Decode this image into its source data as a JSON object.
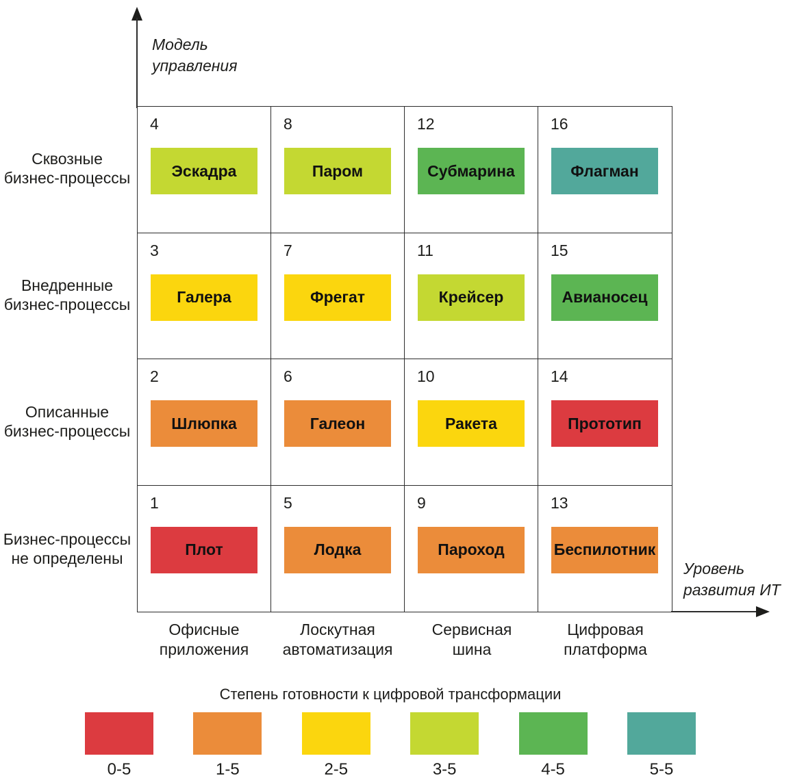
{
  "y_axis": {
    "label": "Модель\nуправления"
  },
  "x_axis": {
    "label": "Уровень\nразвития ИТ"
  },
  "matrix": {
    "row_labels": [
      "Сквозные\nбизнес-процессы",
      "Внедренные\nбизнес-процессы",
      "Описанные\nбизнес-процессы",
      "Бизнес-процессы\nне определены"
    ],
    "column_labels": [
      "Офисные\nприложения",
      "Лоскутная\nавтоматизация",
      "Сервисная\nшина",
      "Цифровая\nплатформа"
    ],
    "cells": [
      {
        "number": "4",
        "name": "Эскадра",
        "color": "#c4d832"
      },
      {
        "number": "8",
        "name": "Паром",
        "color": "#c4d832"
      },
      {
        "number": "12",
        "name": "Субмарина",
        "color": "#5cb553"
      },
      {
        "number": "16",
        "name": "Флагман",
        "color": "#52a89b"
      },
      {
        "number": "3",
        "name": "Галера",
        "color": "#fbd60e"
      },
      {
        "number": "7",
        "name": "Фрегат",
        "color": "#fbd60e"
      },
      {
        "number": "11",
        "name": "Крейсер",
        "color": "#c4d832"
      },
      {
        "number": "15",
        "name": "Авианосец",
        "color": "#5cb553"
      },
      {
        "number": "2",
        "name": "Шлюпка",
        "color": "#eb8c3a"
      },
      {
        "number": "6",
        "name": "Галеон",
        "color": "#eb8c3a"
      },
      {
        "number": "10",
        "name": "Ракета",
        "color": "#fbd60e"
      },
      {
        "number": "14",
        "name": "Прототип",
        "color": "#dc3b40"
      },
      {
        "number": "1",
        "name": "Плот",
        "color": "#dc3b40"
      },
      {
        "number": "5",
        "name": "Лодка",
        "color": "#eb8c3a"
      },
      {
        "number": "9",
        "name": "Пароход",
        "color": "#eb8c3a"
      },
      {
        "number": "13",
        "name": "Беспилотник",
        "color": "#eb8c3a"
      }
    ]
  },
  "legend": {
    "title": "Степень готовности к цифровой трансформации",
    "items": [
      {
        "label": "0-5",
        "color": "#dc3b40"
      },
      {
        "label": "1-5",
        "color": "#eb8c3a"
      },
      {
        "label": "2-5",
        "color": "#fbd60e"
      },
      {
        "label": "3-5",
        "color": "#c4d832"
      },
      {
        "label": "4-5",
        "color": "#5cb553"
      },
      {
        "label": "5-5",
        "color": "#52a89b"
      }
    ]
  },
  "colors": {
    "red": "#dc3b40",
    "orange": "#eb8c3a",
    "yellow": "#fbd60e",
    "yellow_green": "#c4d832",
    "green": "#5cb553",
    "teal": "#52a89b",
    "line": "#2c2c2c",
    "text": "#1d1d1b"
  }
}
